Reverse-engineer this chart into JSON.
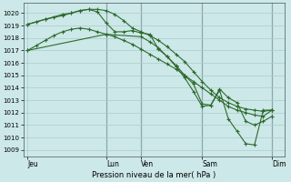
{
  "bg_color": "#cde8e8",
  "grid_color": "#aacccc",
  "line_color": "#2d6a2d",
  "marker_color": "#2d6a2d",
  "xlabel": "Pression niveau de la mer( hPa )",
  "ylim": [
    1008.5,
    1020.8
  ],
  "yticks": [
    1009,
    1010,
    1011,
    1012,
    1013,
    1014,
    1015,
    1016,
    1017,
    1018,
    1019,
    1020
  ],
  "xtick_labels": [
    "Jeu",
    "Lun",
    "Ven",
    "Sam",
    "Dim"
  ],
  "xtick_positions": [
    0,
    9,
    13,
    20,
    28
  ],
  "xlim": [
    -0.5,
    29.5
  ],
  "vlines": [
    9,
    13,
    20,
    28
  ],
  "series": [
    {
      "x": [
        0,
        1,
        2,
        3,
        4,
        5,
        6,
        7,
        8,
        9,
        10,
        11,
        12,
        13,
        14,
        15,
        16,
        17,
        18,
        19,
        20,
        21,
        22,
        23,
        24,
        25,
        26,
        27,
        28
      ],
      "y": [
        1017.0,
        1017.4,
        1017.8,
        1018.2,
        1018.5,
        1018.7,
        1018.8,
        1018.7,
        1018.5,
        1018.3,
        1018.1,
        1017.8,
        1017.5,
        1017.1,
        1016.7,
        1016.3,
        1015.9,
        1015.5,
        1015.0,
        1014.5,
        1014.0,
        1013.5,
        1013.0,
        1012.5,
        1012.2,
        1012.0,
        1011.8,
        1011.7,
        1012.2
      ]
    },
    {
      "x": [
        0,
        1,
        2,
        3,
        4,
        5,
        6,
        7,
        8,
        9,
        10,
        11,
        12,
        13,
        14,
        15,
        16,
        17,
        18,
        19,
        20,
        21,
        22,
        23,
        24,
        25,
        26,
        27,
        28
      ],
      "y": [
        1019.1,
        1019.3,
        1019.5,
        1019.7,
        1019.9,
        1020.0,
        1020.2,
        1020.3,
        1020.3,
        1020.2,
        1019.9,
        1019.4,
        1018.8,
        1018.5,
        1018.2,
        1017.8,
        1017.3,
        1016.7,
        1016.1,
        1015.3,
        1014.5,
        1013.8,
        1013.2,
        1012.8,
        1012.5,
        1012.3,
        1012.2,
        1012.1,
        1012.2
      ]
    },
    {
      "x": [
        0,
        2,
        4,
        5,
        6,
        7,
        8,
        9,
        10,
        11,
        12,
        13,
        14,
        15,
        16,
        17,
        18,
        19,
        20,
        21,
        22,
        23,
        24,
        25,
        26,
        27,
        28
      ],
      "y": [
        1019.1,
        1019.5,
        1019.8,
        1020.0,
        1020.2,
        1020.3,
        1020.1,
        1019.2,
        1018.5,
        1018.5,
        1018.6,
        1018.4,
        1018.3,
        1017.1,
        1016.5,
        1015.8,
        1015.0,
        1014.3,
        1012.7,
        1012.6,
        1013.9,
        1013.2,
        1012.8,
        1011.3,
        1011.0,
        1011.3,
        1011.7
      ]
    },
    {
      "x": [
        0,
        9,
        13,
        14,
        15,
        16,
        17,
        18,
        19,
        20,
        21,
        22,
        23,
        24,
        25,
        26,
        27,
        28
      ],
      "y": [
        1017.0,
        1018.3,
        1018.1,
        1017.7,
        1017.2,
        1016.5,
        1015.7,
        1014.8,
        1013.7,
        1012.5,
        1012.6,
        1013.8,
        1011.5,
        1010.5,
        1009.5,
        1009.4,
        1012.2,
        1012.2
      ]
    }
  ]
}
